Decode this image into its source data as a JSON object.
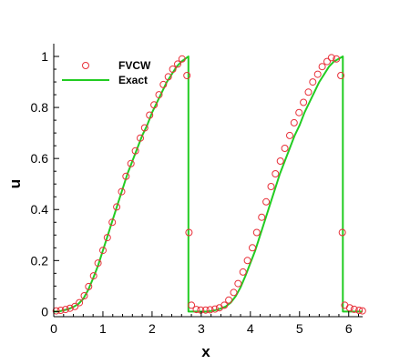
{
  "chart_data": {
    "type": "line",
    "title": "",
    "xlabel": "x",
    "ylabel": "u",
    "xlim": [
      0,
      6.283
    ],
    "ylim": [
      -0.02,
      1.05
    ],
    "xticks": [
      0,
      1,
      2,
      3,
      4,
      5,
      6
    ],
    "yticks": [
      0,
      0.2,
      0.4,
      0.6,
      0.8,
      1
    ],
    "ytick_labels": [
      "0",
      "0.2",
      "0.4",
      "0.6",
      "0.8",
      "1"
    ],
    "grid": false,
    "legend_position": "top-left",
    "colors": {
      "fvcw": "#e8313a",
      "exact": "#22cc22",
      "axis": "#000000"
    },
    "series": [
      {
        "name": "FVCW",
        "marker": "circle",
        "x": [
          0.05,
          0.14,
          0.24,
          0.33,
          0.43,
          0.52,
          0.62,
          0.71,
          0.81,
          0.9,
          1.0,
          1.09,
          1.19,
          1.28,
          1.38,
          1.47,
          1.57,
          1.66,
          1.76,
          1.85,
          1.95,
          2.04,
          2.14,
          2.23,
          2.33,
          2.42,
          2.52,
          2.61,
          2.71,
          2.75,
          2.8,
          2.9,
          2.99,
          3.09,
          3.18,
          3.28,
          3.37,
          3.47,
          3.56,
          3.66,
          3.75,
          3.85,
          3.94,
          4.04,
          4.13,
          4.23,
          4.32,
          4.42,
          4.51,
          4.61,
          4.7,
          4.8,
          4.89,
          4.99,
          5.08,
          5.18,
          5.27,
          5.37,
          5.46,
          5.56,
          5.65,
          5.75,
          5.84,
          5.87,
          5.92,
          6.02,
          6.11,
          6.21,
          6.28
        ],
        "y": [
          0.003,
          0.005,
          0.008,
          0.013,
          0.02,
          0.035,
          0.062,
          0.098,
          0.14,
          0.19,
          0.24,
          0.29,
          0.35,
          0.41,
          0.47,
          0.53,
          0.58,
          0.63,
          0.68,
          0.72,
          0.77,
          0.81,
          0.85,
          0.89,
          0.92,
          0.95,
          0.97,
          0.99,
          0.925,
          0.31,
          0.025,
          0.008,
          0.006,
          0.006,
          0.007,
          0.01,
          0.015,
          0.025,
          0.045,
          0.075,
          0.11,
          0.155,
          0.2,
          0.25,
          0.31,
          0.37,
          0.43,
          0.49,
          0.54,
          0.59,
          0.64,
          0.69,
          0.74,
          0.78,
          0.82,
          0.86,
          0.9,
          0.93,
          0.96,
          0.98,
          0.995,
          0.99,
          0.925,
          0.31,
          0.025,
          0.015,
          0.009,
          0.005,
          0.003
        ]
      },
      {
        "name": "Exact",
        "x": [
          0,
          0.1,
          0.2,
          0.3,
          0.4,
          0.5,
          0.6,
          0.7,
          0.8,
          0.9,
          1.0,
          1.1,
          1.2,
          1.3,
          1.4,
          1.5,
          1.6,
          1.7,
          1.8,
          1.9,
          2.0,
          2.1,
          2.2,
          2.3,
          2.4,
          2.5,
          2.6,
          2.74,
          2.74,
          2.9,
          3.0,
          3.1,
          3.2,
          3.3,
          3.4,
          3.5,
          3.6,
          3.7,
          3.8,
          3.9,
          4.0,
          4.1,
          4.2,
          4.3,
          4.4,
          4.5,
          4.6,
          4.7,
          4.8,
          4.9,
          5.0,
          5.1,
          5.2,
          5.3,
          5.4,
          5.5,
          5.6,
          5.7,
          5.88,
          5.88,
          6.0,
          6.1,
          6.2,
          6.283
        ],
        "y": [
          0,
          0,
          0.005,
          0.01,
          0.018,
          0.03,
          0.05,
          0.085,
          0.13,
          0.18,
          0.24,
          0.3,
          0.36,
          0.42,
          0.48,
          0.54,
          0.59,
          0.64,
          0.69,
          0.73,
          0.78,
          0.82,
          0.86,
          0.9,
          0.93,
          0.96,
          0.98,
          1.0,
          0.0,
          0.0,
          0.0,
          0.0,
          0.002,
          0.006,
          0.012,
          0.02,
          0.035,
          0.06,
          0.095,
          0.14,
          0.19,
          0.24,
          0.3,
          0.36,
          0.42,
          0.48,
          0.54,
          0.59,
          0.64,
          0.69,
          0.73,
          0.78,
          0.82,
          0.86,
          0.9,
          0.93,
          0.96,
          0.98,
          1.0,
          0.0,
          0.0,
          0.0,
          0.0,
          0.0
        ]
      }
    ]
  }
}
